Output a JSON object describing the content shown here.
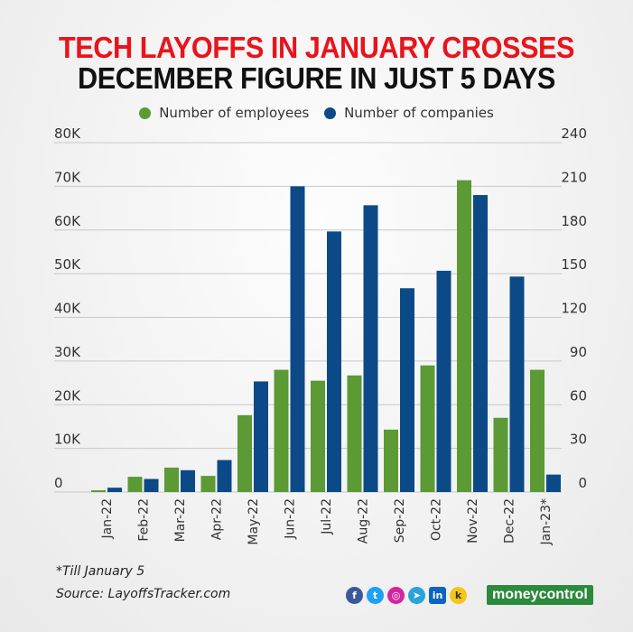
{
  "title_line1": "TECH LAYOFFS IN JANUARY CROSSES",
  "title_line2": "DECEMBER FIGURE IN JUST 5 DAYS",
  "chart_data": {
    "type": "bar",
    "categories": [
      "Jan-22",
      "Feb-22",
      "Mar-22",
      "Apr-22",
      "May-22",
      "Jun-22",
      "Jul-22",
      "Aug-22",
      "Sep-22",
      "Oct-22",
      "Nov-22",
      "Dec-22",
      "Jan-23*"
    ],
    "series": [
      {
        "name": "Number of employees",
        "axis": "left",
        "color": "#5b9a35",
        "values": [
          400,
          3500,
          5600,
          3700,
          17600,
          28000,
          25500,
          26700,
          14300,
          29000,
          71400,
          17000,
          28000
        ]
      },
      {
        "name": "Number of companies",
        "axis": "right",
        "color": "#0b4a87",
        "values": [
          3,
          9,
          15,
          22,
          76,
          210,
          179,
          197,
          140,
          152,
          204,
          148,
          12
        ]
      }
    ],
    "left_ticks": [
      "0",
      "10K",
      "20K",
      "30K",
      "40K",
      "50K",
      "60K",
      "70K",
      "80K"
    ],
    "right_ticks": [
      "0",
      "30",
      "60",
      "90",
      "120",
      "150",
      "180",
      "210",
      "240"
    ],
    "ylim_left": [
      0,
      80000
    ],
    "ylim_right": [
      0,
      240
    ],
    "grid": true,
    "legend": "top-center"
  },
  "footnote": "*Till January 5",
  "source": "Source: LayoffsTracker.com",
  "social_icons": [
    "facebook-icon",
    "twitter-icon",
    "instagram-icon",
    "telegram-icon",
    "linkedin-icon",
    "koo-icon"
  ],
  "brand": "moneycontrol"
}
